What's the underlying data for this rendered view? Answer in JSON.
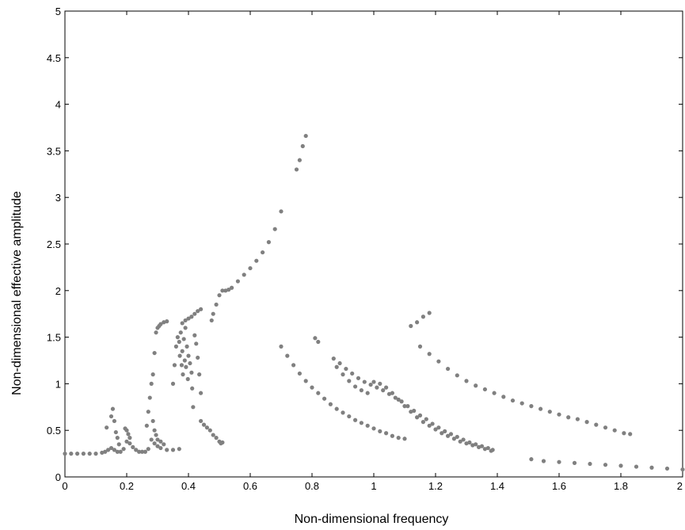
{
  "chart_data": {
    "type": "scatter",
    "title": "",
    "xlabel": "Non-dimensional frequency",
    "ylabel": "Non-dimensional effective amplitude",
    "xlim": [
      0,
      2
    ],
    "ylim": [
      0,
      5
    ],
    "x_ticks": [
      0,
      0.2,
      0.4,
      0.6,
      0.8,
      1,
      1.2,
      1.4,
      1.6,
      1.8,
      2
    ],
    "x_tick_labels": [
      "0",
      "0.2",
      "0.4",
      "0.6",
      "0.8",
      "1",
      "1.2",
      "1.4",
      "1.6",
      "1.8",
      "2"
    ],
    "y_ticks": [
      0,
      0.5,
      1,
      1.5,
      2,
      2.5,
      3,
      3.5,
      4,
      4.5,
      5
    ],
    "y_tick_labels": [
      "0",
      "0.5",
      "1",
      "1.5",
      "2",
      "2.5",
      "3",
      "3.5",
      "4",
      "4.5",
      "5"
    ],
    "grid": false,
    "legend": "none",
    "marker_color": "#808080",
    "series": [
      {
        "points": [
          [
            0.0,
            0.25
          ],
          [
            0.02,
            0.25
          ],
          [
            0.04,
            0.25
          ],
          [
            0.06,
            0.25
          ],
          [
            0.08,
            0.25
          ],
          [
            0.1,
            0.25
          ],
          [
            0.12,
            0.26
          ],
          [
            0.13,
            0.27
          ],
          [
            0.14,
            0.29
          ],
          [
            0.15,
            0.31
          ],
          [
            0.16,
            0.29
          ],
          [
            0.17,
            0.27
          ],
          [
            0.18,
            0.27
          ],
          [
            0.19,
            0.3
          ],
          [
            0.2,
            0.38
          ],
          [
            0.21,
            0.36
          ],
          [
            0.22,
            0.32
          ],
          [
            0.23,
            0.29
          ],
          [
            0.24,
            0.27
          ],
          [
            0.25,
            0.27
          ],
          [
            0.26,
            0.27
          ],
          [
            0.27,
            0.3
          ],
          [
            0.28,
            0.4
          ],
          [
            0.29,
            0.36
          ],
          [
            0.3,
            0.33
          ],
          [
            0.31,
            0.31
          ],
          [
            0.33,
            0.29
          ],
          [
            0.35,
            0.29
          ],
          [
            0.37,
            0.3
          ],
          [
            0.135,
            0.53
          ],
          [
            0.15,
            0.65
          ],
          [
            0.155,
            0.73
          ],
          [
            0.16,
            0.6
          ],
          [
            0.165,
            0.48
          ],
          [
            0.17,
            0.42
          ],
          [
            0.175,
            0.35
          ],
          [
            0.195,
            0.52
          ],
          [
            0.2,
            0.5
          ],
          [
            0.205,
            0.46
          ],
          [
            0.21,
            0.42
          ],
          [
            0.265,
            0.55
          ],
          [
            0.27,
            0.7
          ],
          [
            0.275,
            0.85
          ],
          [
            0.28,
            1.0
          ],
          [
            0.285,
            1.1
          ],
          [
            0.29,
            1.33
          ],
          [
            0.295,
            1.55
          ],
          [
            0.3,
            1.6
          ],
          [
            0.305,
            1.62
          ],
          [
            0.31,
            1.64
          ],
          [
            0.32,
            1.66
          ],
          [
            0.33,
            1.67
          ],
          [
            0.285,
            0.6
          ],
          [
            0.29,
            0.5
          ],
          [
            0.295,
            0.45
          ],
          [
            0.3,
            0.4
          ],
          [
            0.31,
            0.38
          ],
          [
            0.32,
            0.35
          ],
          [
            0.35,
            1.0
          ],
          [
            0.355,
            1.2
          ],
          [
            0.36,
            1.4
          ],
          [
            0.365,
            1.5
          ],
          [
            0.37,
            1.45
          ],
          [
            0.372,
            1.3
          ],
          [
            0.375,
            1.55
          ],
          [
            0.378,
            1.2
          ],
          [
            0.38,
            1.35
          ],
          [
            0.382,
            1.1
          ],
          [
            0.385,
            1.48
          ],
          [
            0.388,
            1.25
          ],
          [
            0.39,
            1.6
          ],
          [
            0.392,
            1.18
          ],
          [
            0.395,
            1.4
          ],
          [
            0.398,
            1.05
          ],
          [
            0.4,
            1.3
          ],
          [
            0.405,
            1.22
          ],
          [
            0.41,
            1.12
          ],
          [
            0.412,
            0.95
          ],
          [
            0.415,
            0.75
          ],
          [
            0.38,
            1.65
          ],
          [
            0.39,
            1.68
          ],
          [
            0.4,
            1.7
          ],
          [
            0.41,
            1.72
          ],
          [
            0.42,
            1.75
          ],
          [
            0.43,
            1.78
          ],
          [
            0.44,
            1.8
          ],
          [
            0.42,
            1.52
          ],
          [
            0.425,
            1.43
          ],
          [
            0.43,
            1.28
          ],
          [
            0.435,
            1.1
          ],
          [
            0.44,
            0.9
          ],
          [
            0.44,
            0.6
          ],
          [
            0.45,
            0.56
          ],
          [
            0.46,
            0.53
          ],
          [
            0.47,
            0.5
          ],
          [
            0.48,
            0.45
          ],
          [
            0.49,
            0.42
          ],
          [
            0.5,
            0.38
          ],
          [
            0.51,
            0.37
          ],
          [
            0.505,
            0.36
          ],
          [
            0.475,
            1.68
          ],
          [
            0.48,
            1.75
          ],
          [
            0.49,
            1.85
          ],
          [
            0.5,
            1.95
          ],
          [
            0.51,
            2.0
          ],
          [
            0.52,
            2.0
          ],
          [
            0.53,
            2.01
          ],
          [
            0.54,
            2.03
          ],
          [
            0.56,
            2.1
          ],
          [
            0.58,
            2.17
          ],
          [
            0.6,
            2.24
          ],
          [
            0.62,
            2.32
          ],
          [
            0.64,
            2.41
          ],
          [
            0.66,
            2.52
          ],
          [
            0.68,
            2.66
          ],
          [
            0.7,
            2.85
          ],
          [
            0.75,
            3.3
          ],
          [
            0.76,
            3.4
          ],
          [
            0.77,
            3.55
          ],
          [
            0.78,
            3.66
          ],
          [
            0.7,
            1.4
          ],
          [
            0.72,
            1.3
          ],
          [
            0.74,
            1.2
          ],
          [
            0.76,
            1.11
          ],
          [
            0.78,
            1.03
          ],
          [
            0.8,
            0.96
          ],
          [
            0.82,
            0.9
          ],
          [
            0.84,
            0.84
          ],
          [
            0.86,
            0.78
          ],
          [
            0.88,
            0.73
          ],
          [
            0.9,
            0.69
          ],
          [
            0.92,
            0.65
          ],
          [
            0.94,
            0.61
          ],
          [
            0.96,
            0.58
          ],
          [
            0.98,
            0.55
          ],
          [
            1.0,
            0.52
          ],
          [
            1.02,
            0.49
          ],
          [
            1.04,
            0.47
          ],
          [
            1.06,
            0.44
          ],
          [
            1.08,
            0.42
          ],
          [
            1.1,
            0.41
          ],
          [
            0.81,
            1.49
          ],
          [
            0.82,
            1.45
          ],
          [
            0.87,
            1.27
          ],
          [
            0.89,
            1.22
          ],
          [
            0.91,
            1.16
          ],
          [
            0.93,
            1.11
          ],
          [
            0.95,
            1.06
          ],
          [
            0.97,
            1.02
          ],
          [
            0.99,
            0.99
          ],
          [
            1.01,
            0.96
          ],
          [
            1.03,
            0.93
          ],
          [
            1.05,
            0.89
          ],
          [
            1.07,
            0.85
          ],
          [
            1.09,
            0.81
          ],
          [
            1.11,
            0.76
          ],
          [
            1.13,
            0.71
          ],
          [
            1.15,
            0.66
          ],
          [
            1.17,
            0.62
          ],
          [
            1.19,
            0.57
          ],
          [
            1.21,
            0.53
          ],
          [
            1.23,
            0.49
          ],
          [
            1.25,
            0.46
          ],
          [
            1.27,
            0.43
          ],
          [
            1.29,
            0.4
          ],
          [
            1.31,
            0.37
          ],
          [
            1.33,
            0.35
          ],
          [
            1.35,
            0.33
          ],
          [
            1.37,
            0.31
          ],
          [
            1.385,
            0.29
          ],
          [
            0.88,
            1.18
          ],
          [
            0.9,
            1.1
          ],
          [
            0.92,
            1.03
          ],
          [
            0.94,
            0.97
          ],
          [
            0.96,
            0.93
          ],
          [
            0.98,
            0.9
          ],
          [
            1.0,
            1.02
          ],
          [
            1.02,
            1.0
          ],
          [
            1.04,
            0.96
          ],
          [
            1.06,
            0.9
          ],
          [
            1.08,
            0.83
          ],
          [
            1.1,
            0.76
          ],
          [
            1.12,
            0.7
          ],
          [
            1.14,
            0.64
          ],
          [
            1.16,
            0.59
          ],
          [
            1.18,
            0.55
          ],
          [
            1.2,
            0.51
          ],
          [
            1.22,
            0.47
          ],
          [
            1.24,
            0.44
          ],
          [
            1.26,
            0.41
          ],
          [
            1.28,
            0.38
          ],
          [
            1.3,
            0.36
          ],
          [
            1.32,
            0.34
          ],
          [
            1.34,
            0.32
          ],
          [
            1.36,
            0.3
          ],
          [
            1.38,
            0.28
          ],
          [
            1.12,
            1.62
          ],
          [
            1.14,
            1.66
          ],
          [
            1.16,
            1.72
          ],
          [
            1.18,
            1.76
          ],
          [
            1.15,
            1.4
          ],
          [
            1.18,
            1.32
          ],
          [
            1.21,
            1.24
          ],
          [
            1.24,
            1.16
          ],
          [
            1.27,
            1.09
          ],
          [
            1.3,
            1.03
          ],
          [
            1.33,
            0.98
          ],
          [
            1.36,
            0.94
          ],
          [
            1.39,
            0.9
          ],
          [
            1.42,
            0.86
          ],
          [
            1.45,
            0.82
          ],
          [
            1.48,
            0.79
          ],
          [
            1.51,
            0.76
          ],
          [
            1.54,
            0.73
          ],
          [
            1.57,
            0.7
          ],
          [
            1.6,
            0.67
          ],
          [
            1.63,
            0.64
          ],
          [
            1.66,
            0.62
          ],
          [
            1.69,
            0.59
          ],
          [
            1.72,
            0.56
          ],
          [
            1.75,
            0.53
          ],
          [
            1.78,
            0.5
          ],
          [
            1.81,
            0.47
          ],
          [
            1.83,
            0.46
          ],
          [
            1.51,
            0.19
          ],
          [
            1.55,
            0.17
          ],
          [
            1.6,
            0.16
          ],
          [
            1.65,
            0.15
          ],
          [
            1.7,
            0.14
          ],
          [
            1.75,
            0.13
          ],
          [
            1.8,
            0.12
          ],
          [
            1.85,
            0.11
          ],
          [
            1.9,
            0.1
          ],
          [
            1.95,
            0.09
          ],
          [
            2.0,
            0.08
          ]
        ]
      }
    ]
  }
}
